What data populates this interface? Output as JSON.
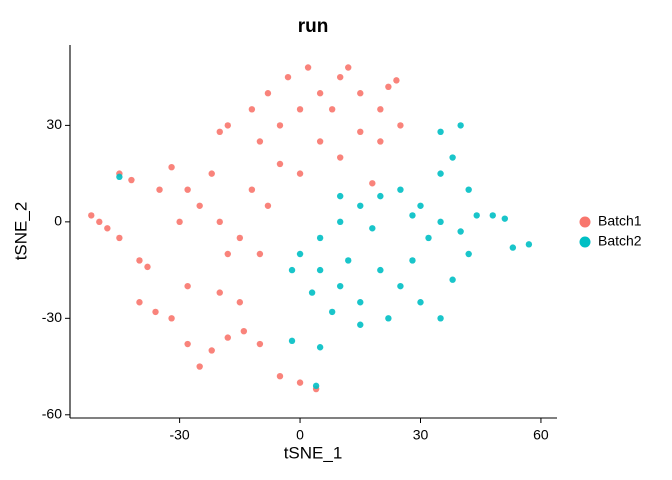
{
  "chart_data": {
    "type": "scatter",
    "title": "run",
    "xlabel": "tSNE_1",
    "ylabel": "tSNE_2",
    "xlim": [
      -57.3,
      64
    ],
    "ylim": [
      -61,
      55
    ],
    "xticks": [
      -30,
      0,
      30,
      60
    ],
    "yticks": [
      -60,
      -30,
      0,
      30
    ],
    "legend": "right",
    "series": [
      {
        "name": "Batch1",
        "color": "#F8766D",
        "x": [
          -10,
          -5,
          0,
          5,
          10,
          -3,
          8,
          15,
          20,
          20,
          15,
          10,
          5,
          -8,
          -18,
          -12,
          2,
          12,
          22,
          25,
          -5,
          0,
          -20,
          18,
          24,
          -32,
          -28,
          -25,
          -20,
          -15,
          -10,
          -30,
          -22,
          -12,
          -8,
          -35,
          -18,
          -52,
          -48,
          -45,
          -50,
          -45,
          -42,
          -40,
          -38,
          -28,
          -20,
          -15,
          -40,
          -36,
          -32,
          -28,
          -22,
          -18,
          -14,
          -25,
          -10,
          -5,
          0,
          4
        ],
        "values": [
          25,
          30,
          35,
          40,
          45,
          45,
          35,
          40,
          35,
          25,
          28,
          20,
          25,
          40,
          30,
          35,
          48,
          48,
          42,
          30,
          18,
          15,
          28,
          12,
          44,
          17,
          10,
          5,
          0,
          -5,
          -10,
          0,
          15,
          10,
          5,
          10,
          -10,
          2,
          -2,
          -5,
          0,
          15,
          13,
          -12,
          -14,
          -20,
          -22,
          -25,
          -25,
          -28,
          -30,
          -38,
          -40,
          -36,
          -34,
          -45,
          -38,
          -48,
          -50,
          -52
        ]
      },
      {
        "name": "Batch2",
        "color": "#00BFC4",
        "x": [
          0,
          5,
          10,
          15,
          20,
          25,
          30,
          35,
          40,
          42,
          38,
          30,
          22,
          15,
          8,
          3,
          -2,
          5,
          12,
          20,
          28,
          32,
          18,
          25,
          10,
          15,
          35,
          28,
          10,
          35,
          38,
          35,
          40,
          42,
          44,
          48,
          51,
          53,
          57,
          -2,
          5,
          4,
          -45
        ],
        "values": [
          -10,
          -5,
          0,
          5,
          8,
          10,
          5,
          0,
          -3,
          -10,
          -18,
          -25,
          -30,
          -32,
          -28,
          -22,
          -15,
          -15,
          -12,
          -15,
          -12,
          -5,
          -2,
          -20,
          -20,
          -25,
          -30,
          2,
          8,
          15,
          20,
          28,
          30,
          10,
          2,
          2,
          1,
          -8,
          -7,
          -37,
          -39,
          -51,
          14
        ]
      }
    ]
  }
}
